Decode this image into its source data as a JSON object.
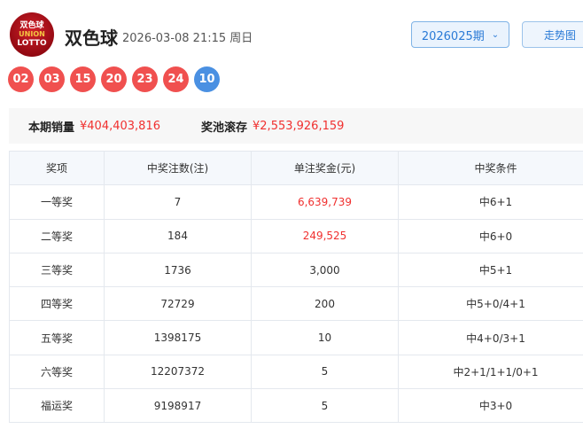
{
  "header": {
    "logo_text": [
      "双色球",
      "UNION",
      "LOTTO"
    ],
    "title": "双色球",
    "date": "2026-03-08 21:15 周日",
    "issue": "2026025期",
    "trend_button": "走势图"
  },
  "balls": {
    "red": [
      "02",
      "03",
      "15",
      "20",
      "23",
      "24"
    ],
    "blue": [
      "10"
    ]
  },
  "colors": {
    "red_ball": "#f0504f",
    "blue_ball": "#4a90e2",
    "money": "#f0302f"
  },
  "sales": {
    "sales_label": "本期销量",
    "sales_value": "¥404,403,816",
    "pool_label": "奖池滚存",
    "pool_value": "¥2,553,926,159"
  },
  "table": {
    "headers": [
      "奖项",
      "中奖注数(注)",
      "单注奖金(元)",
      "中奖条件"
    ],
    "rows": [
      [
        "一等奖",
        "7",
        "6,639,739",
        "中6+1"
      ],
      [
        "二等奖",
        "184",
        "249,525",
        "中6+0"
      ],
      [
        "三等奖",
        "1736",
        "3,000",
        "中5+1"
      ],
      [
        "四等奖",
        "72729",
        "200",
        "中5+0/4+1"
      ],
      [
        "五等奖",
        "1398175",
        "10",
        "中4+0/3+1"
      ],
      [
        "六等奖",
        "12207372",
        "5",
        "中2+1/1+1/0+1"
      ],
      [
        "福运奖",
        "9198917",
        "5",
        "中3+0"
      ]
    ]
  }
}
